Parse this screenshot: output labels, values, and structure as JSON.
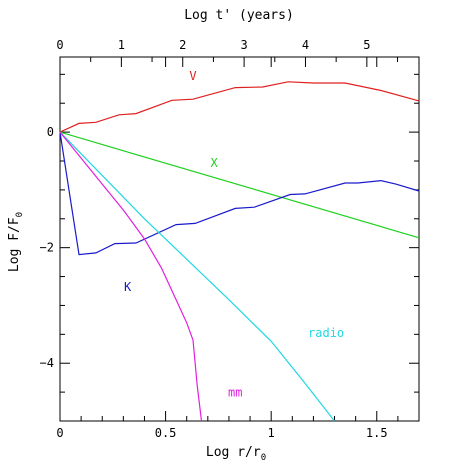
{
  "chart_data": {
    "type": "line",
    "title": "",
    "xlabel": "Log r/r",
    "xlabel_sub": "0",
    "ylabel": "Log F/F",
    "ylabel_sub": "0",
    "top_xlabel": "Log t' (years)",
    "xlim": [
      0,
      1.7
    ],
    "ylim": [
      -5,
      1.3
    ],
    "top_xlim": [
      0,
      5.85
    ],
    "x_ticks": [
      0,
      0.5,
      1,
      1.5
    ],
    "x_tick_labels": [
      "0",
      "0.5",
      "1",
      "1.5"
    ],
    "y_ticks": [
      -4,
      -2,
      0
    ],
    "y_tick_labels": [
      "−4",
      "−2",
      "0"
    ],
    "top_ticks": [
      0,
      1,
      2,
      3,
      4,
      5
    ],
    "top_tick_labels": [
      "0",
      "1",
      "2",
      "3",
      "4",
      "5"
    ],
    "grid": false,
    "legend": "inline labels",
    "series": [
      {
        "name": "V",
        "color": "#e02020",
        "label_pos": [
          0.63,
          0.9
        ],
        "x": [
          0,
          0.09,
          0.17,
          0.28,
          0.36,
          0.53,
          0.63,
          0.83,
          0.96,
          1.08,
          1.2,
          1.35,
          1.52,
          1.7
        ],
        "y": [
          0,
          0.15,
          0.17,
          0.3,
          0.32,
          0.55,
          0.57,
          0.77,
          0.78,
          0.87,
          0.85,
          0.85,
          0.72,
          0.54
        ]
      },
      {
        "name": "X",
        "color": "#20d020",
        "label_pos": [
          0.73,
          -0.6
        ],
        "x": [
          0,
          1.7
        ],
        "y": [
          0,
          -1.83
        ]
      },
      {
        "name": "K",
        "color": "#1a1acc",
        "label_pos": [
          0.32,
          -2.75
        ],
        "x": [
          0,
          0.09,
          0.17,
          0.26,
          0.36,
          0.55,
          0.64,
          0.83,
          0.92,
          1.09,
          1.16,
          1.35,
          1.41,
          1.52,
          1.59,
          1.7
        ],
        "y": [
          0,
          -2.12,
          -2.09,
          -1.93,
          -1.92,
          -1.6,
          -1.58,
          -1.32,
          -1.3,
          -1.08,
          -1.07,
          -0.88,
          -0.88,
          -0.84,
          -0.9,
          -1.02
        ]
      },
      {
        "name": "radio",
        "color": "#20d8e0",
        "label_pos": [
          1.26,
          -3.55
        ],
        "x": [
          0,
          0.2,
          0.4,
          0.6,
          0.8,
          1.0,
          1.15,
          1.3
        ],
        "y": [
          0,
          -0.75,
          -1.5,
          -2.2,
          -2.9,
          -3.62,
          -4.3,
          -5.0
        ]
      },
      {
        "name": "mm",
        "color": "#e020e0",
        "label_pos": [
          0.83,
          -4.58
        ],
        "x": [
          0,
          0.1,
          0.2,
          0.3,
          0.4,
          0.48,
          0.55,
          0.6,
          0.63,
          0.65,
          0.67
        ],
        "y": [
          0,
          -0.45,
          -0.9,
          -1.35,
          -1.85,
          -2.35,
          -2.9,
          -3.3,
          -3.6,
          -4.4,
          -5.0
        ]
      }
    ]
  }
}
